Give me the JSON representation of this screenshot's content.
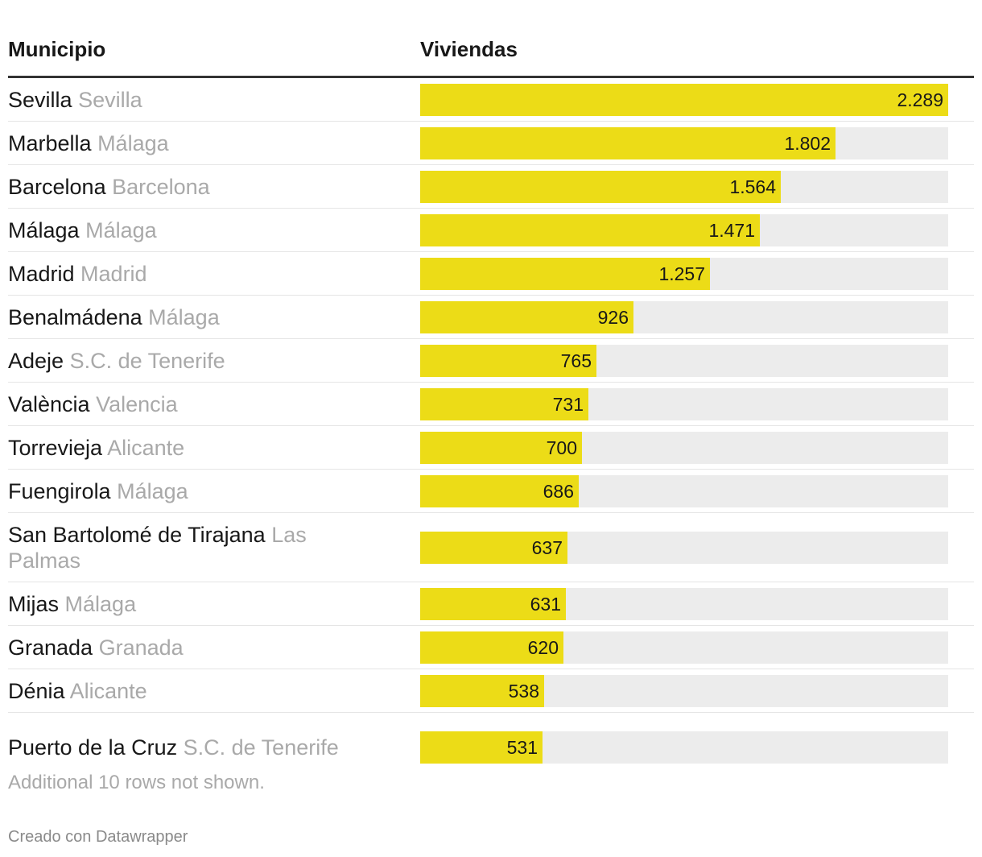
{
  "chart_data": {
    "type": "table",
    "columns": [
      "Municipio",
      "Viviendas"
    ],
    "rows": [
      {
        "municipio": "Sevilla",
        "provincia": "Sevilla",
        "viviendas": 2289,
        "label": "2.289"
      },
      {
        "municipio": "Marbella",
        "provincia": "Málaga",
        "viviendas": 1802,
        "label": "1.802"
      },
      {
        "municipio": "Barcelona",
        "provincia": "Barcelona",
        "viviendas": 1564,
        "label": "1.564"
      },
      {
        "municipio": "Málaga",
        "provincia": "Málaga",
        "viviendas": 1471,
        "label": "1.471"
      },
      {
        "municipio": "Madrid",
        "provincia": "Madrid",
        "viviendas": 1257,
        "label": "1.257"
      },
      {
        "municipio": "Benalmádena",
        "provincia": "Málaga",
        "viviendas": 926,
        "label": "926"
      },
      {
        "municipio": "Adeje",
        "provincia": "S.C. de Tenerife",
        "viviendas": 765,
        "label": "765"
      },
      {
        "municipio": "València",
        "provincia": "Valencia",
        "viviendas": 731,
        "label": "731"
      },
      {
        "municipio": "Torrevieja",
        "provincia": "Alicante",
        "viviendas": 700,
        "label": "700"
      },
      {
        "municipio": "Fuengirola",
        "provincia": "Málaga",
        "viviendas": 686,
        "label": "686"
      },
      {
        "municipio": "San Bartolomé de Tirajana",
        "provincia": "Las Palmas",
        "viviendas": 637,
        "label": "637"
      },
      {
        "municipio": "Mijas",
        "provincia": "Málaga",
        "viviendas": 631,
        "label": "631"
      },
      {
        "municipio": "Granada",
        "provincia": "Granada",
        "viviendas": 620,
        "label": "620"
      },
      {
        "municipio": "Dénia",
        "provincia": "Alicante",
        "viviendas": 538,
        "label": "538"
      },
      {
        "municipio": "Puerto de la Cruz",
        "provincia": "S.C. de Tenerife",
        "viviendas": 531,
        "label": "531"
      }
    ],
    "max_value": 2289,
    "note": "Additional 10 rows not shown.",
    "credit": "Creado con Datawrapper"
  },
  "colors": {
    "bar": "#ecdc17",
    "track": "#ececec",
    "province_text": "#a9a9a9"
  }
}
